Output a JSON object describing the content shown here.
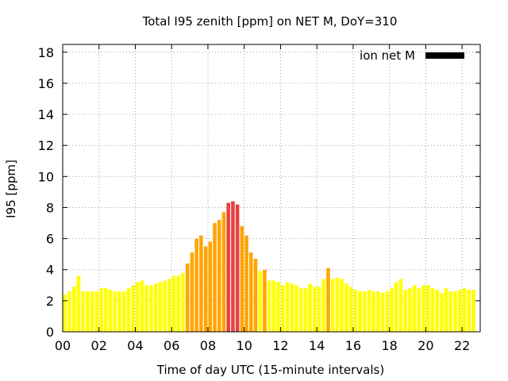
{
  "chart_data": {
    "type": "bar",
    "title": "Total I95 zenith [ppm] on NET M, DoY=310",
    "xlabel": "Time of day UTC (15-minute intervals)",
    "ylabel": "I95 [ppm]",
    "xlim": [
      0,
      23
    ],
    "ylim": [
      0,
      18.5
    ],
    "grid": true,
    "legend": {
      "position": "top-right",
      "label": "ion net M",
      "color": "#000000"
    },
    "x_ticks": [
      {
        "value": 0,
        "label": "00"
      },
      {
        "value": 2,
        "label": "02"
      },
      {
        "value": 4,
        "label": "04"
      },
      {
        "value": 6,
        "label": "06"
      },
      {
        "value": 8,
        "label": "08"
      },
      {
        "value": 10,
        "label": "10"
      },
      {
        "value": 12,
        "label": "12"
      },
      {
        "value": 14,
        "label": "14"
      },
      {
        "value": 16,
        "label": "16"
      },
      {
        "value": 18,
        "label": "18"
      },
      {
        "value": 20,
        "label": "20"
      },
      {
        "value": 22,
        "label": "22"
      }
    ],
    "y_ticks": [
      {
        "value": 0,
        "label": "0"
      },
      {
        "value": 2,
        "label": "2"
      },
      {
        "value": 4,
        "label": "4"
      },
      {
        "value": 6,
        "label": "6"
      },
      {
        "value": 8,
        "label": "8"
      },
      {
        "value": 10,
        "label": "10"
      },
      {
        "value": 12,
        "label": "12"
      },
      {
        "value": 14,
        "label": "14"
      },
      {
        "value": 16,
        "label": "16"
      },
      {
        "value": 18,
        "label": "18"
      }
    ],
    "bar_interval_hours": 0.25,
    "bar_width_fraction": 0.8,
    "color_levels": [
      {
        "min": 0,
        "max": 4,
        "color": "#ffff00"
      },
      {
        "min": 4,
        "max": 8,
        "color": "#ffa500"
      },
      {
        "min": 8,
        "max": 100,
        "color": "#e84040"
      }
    ],
    "values": [
      2.4,
      2.6,
      2.9,
      3.6,
      2.6,
      2.6,
      2.6,
      2.6,
      2.8,
      2.8,
      2.7,
      2.6,
      2.6,
      2.6,
      2.8,
      3.0,
      3.2,
      3.3,
      3.0,
      3.0,
      3.1,
      3.2,
      3.3,
      3.4,
      3.6,
      3.6,
      3.8,
      4.4,
      5.1,
      6.0,
      6.2,
      5.5,
      5.8,
      7.0,
      7.2,
      7.7,
      8.3,
      8.4,
      8.2,
      6.8,
      6.2,
      5.1,
      4.7,
      3.9,
      4.0,
      3.3,
      3.3,
      3.2,
      3.0,
      3.2,
      3.1,
      3.0,
      2.8,
      2.8,
      3.1,
      2.9,
      2.9,
      3.4,
      4.1,
      3.4,
      3.5,
      3.4,
      3.1,
      2.9,
      2.7,
      2.6,
      2.6,
      2.7,
      2.6,
      2.6,
      2.5,
      2.6,
      2.8,
      3.2,
      3.4,
      2.7,
      2.8,
      3.0,
      2.8,
      3.0,
      3.0,
      2.8,
      2.7,
      2.5,
      2.8,
      2.6,
      2.6,
      2.7,
      2.8,
      2.7,
      2.7
    ]
  }
}
